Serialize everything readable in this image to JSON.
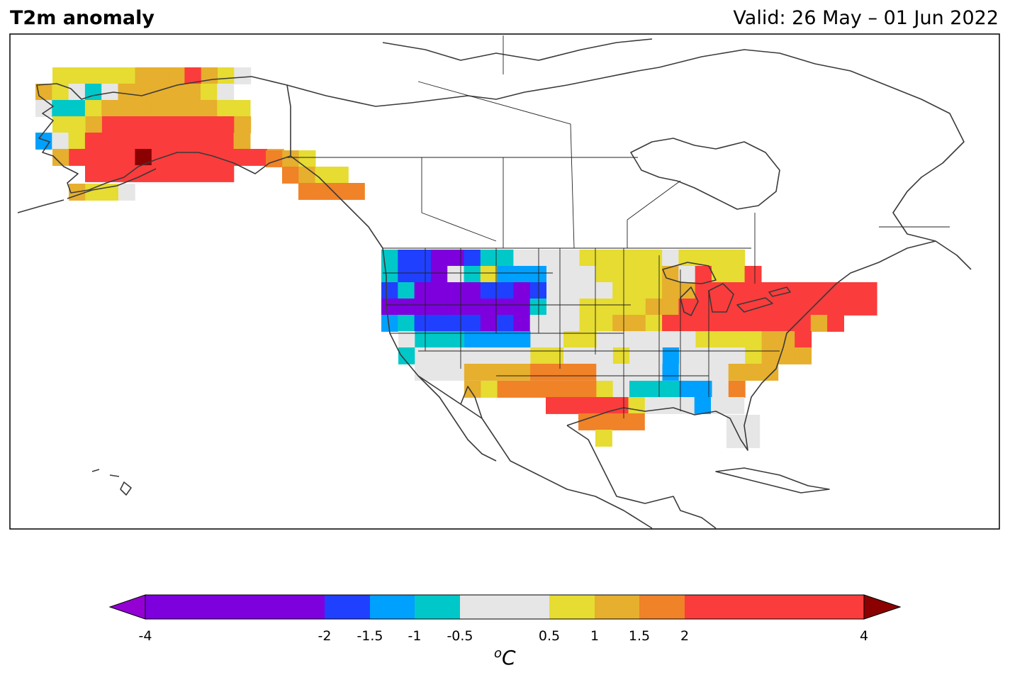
{
  "header": {
    "title": "T2m anomaly",
    "valid": "Valid: 26 May – 01 Jun 2022"
  },
  "map": {
    "variable": "2 m temperature anomaly",
    "legend_unit": "oC",
    "levels": [
      "-4",
      "-2",
      "-1.5",
      "-1",
      "-0.5",
      "0.5",
      "1",
      "1.5",
      "2",
      "4"
    ],
    "colors": {
      "below_-4": "#9400d3",
      "-4_to_-2": "#7d00dd",
      "-2_to_-1.5": "#2040ff",
      "-1.5_to_-1": "#00a0ff",
      "-1_to_-0.5": "#00c8c8",
      "-0.5_to_0.5": "#e6e6e6",
      "0.5_to_1": "#e6dc32",
      "1_to_1.5": "#e6af2d",
      "1.5_to_2": "#f08228",
      "2_to_4": "#fa3c3c",
      "above_4": "#8b0000"
    },
    "regions": [
      {
        "name": "Alaska",
        "anomaly": "warm, locally above 4"
      },
      {
        "name": "Pacific Northwest / Northern Rockies",
        "anomaly": "cold, -4 to -1"
      },
      {
        "name": "Texas / Southern Plains",
        "anomaly": "warm, 2 to 4"
      },
      {
        "name": "Great Lakes / Northeast",
        "anomaly": "warm, 2 to 4"
      },
      {
        "name": "Southeast",
        "anomaly": "near normal to slightly cool"
      }
    ]
  }
}
